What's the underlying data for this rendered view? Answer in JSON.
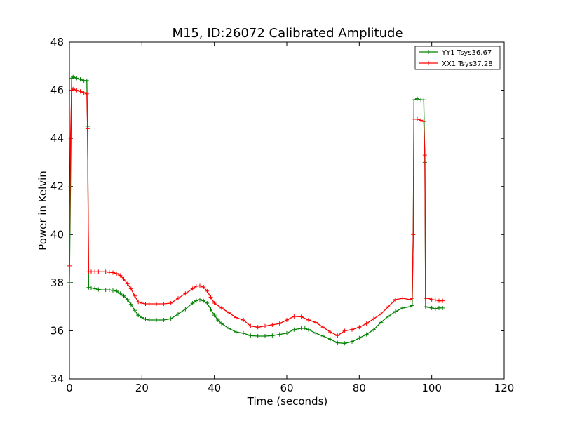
{
  "chart_data": {
    "type": "line",
    "title": "M15, ID:26072 Calibrated Amplitude",
    "xlabel": "Time (seconds)",
    "ylabel": "Power in Kelvin",
    "xlim": [
      0,
      120
    ],
    "ylim": [
      34,
      48
    ],
    "xticks": [
      0,
      20,
      40,
      60,
      80,
      100,
      120
    ],
    "yticks": [
      34,
      36,
      38,
      40,
      42,
      44,
      46,
      48
    ],
    "grid": false,
    "legend_position": "top-right",
    "marker": "+",
    "series": [
      {
        "name": "YY1 Tsys36.67",
        "color": "#008000",
        "points": [
          [
            0,
            38.0
          ],
          [
            0.3,
            42.0
          ],
          [
            0.6,
            46.5
          ],
          [
            1,
            46.55
          ],
          [
            2,
            46.5
          ],
          [
            3,
            46.45
          ],
          [
            4,
            46.4
          ],
          [
            4.8,
            46.4
          ],
          [
            5.0,
            44.5
          ],
          [
            5.3,
            37.8
          ],
          [
            6,
            37.78
          ],
          [
            7,
            37.75
          ],
          [
            8,
            37.72
          ],
          [
            9,
            37.7
          ],
          [
            10,
            37.7
          ],
          [
            11,
            37.7
          ],
          [
            12,
            37.68
          ],
          [
            13,
            37.65
          ],
          [
            14,
            37.55
          ],
          [
            15,
            37.45
          ],
          [
            16,
            37.3
          ],
          [
            17,
            37.1
          ],
          [
            18,
            36.85
          ],
          [
            19,
            36.65
          ],
          [
            20,
            36.55
          ],
          [
            21,
            36.48
          ],
          [
            22,
            36.45
          ],
          [
            24,
            36.45
          ],
          [
            26,
            36.45
          ],
          [
            28,
            36.5
          ],
          [
            30,
            36.7
          ],
          [
            32,
            36.9
          ],
          [
            34,
            37.15
          ],
          [
            35,
            37.25
          ],
          [
            36,
            37.3
          ],
          [
            37,
            37.25
          ],
          [
            38,
            37.15
          ],
          [
            39,
            36.9
          ],
          [
            40,
            36.65
          ],
          [
            41,
            36.45
          ],
          [
            42,
            36.3
          ],
          [
            44,
            36.1
          ],
          [
            46,
            35.95
          ],
          [
            48,
            35.9
          ],
          [
            50,
            35.8
          ],
          [
            52,
            35.78
          ],
          [
            54,
            35.78
          ],
          [
            56,
            35.8
          ],
          [
            58,
            35.85
          ],
          [
            60,
            35.9
          ],
          [
            62,
            36.05
          ],
          [
            64,
            36.1
          ],
          [
            65,
            36.1
          ],
          [
            66,
            36.05
          ],
          [
            68,
            35.9
          ],
          [
            70,
            35.78
          ],
          [
            72,
            35.65
          ],
          [
            74,
            35.5
          ],
          [
            76,
            35.48
          ],
          [
            78,
            35.55
          ],
          [
            80,
            35.7
          ],
          [
            82,
            35.85
          ],
          [
            84,
            36.05
          ],
          [
            86,
            36.35
          ],
          [
            88,
            36.6
          ],
          [
            90,
            36.8
          ],
          [
            92,
            36.95
          ],
          [
            94,
            37.0
          ],
          [
            94.6,
            37.05
          ],
          [
            94.9,
            40.0
          ],
          [
            95.1,
            45.6
          ],
          [
            96,
            45.65
          ],
          [
            97,
            45.6
          ],
          [
            97.8,
            45.6
          ],
          [
            98.1,
            43.0
          ],
          [
            98.3,
            37.0
          ],
          [
            99,
            36.98
          ],
          [
            100,
            36.95
          ],
          [
            101,
            36.92
          ],
          [
            102,
            36.95
          ],
          [
            103,
            36.95
          ]
        ]
      },
      {
        "name": "XX1 Tsys37.28",
        "color": "#ff0000",
        "points": [
          [
            0,
            38.7
          ],
          [
            0.3,
            44.0
          ],
          [
            0.6,
            46.0
          ],
          [
            1,
            46.05
          ],
          [
            2,
            46.0
          ],
          [
            3,
            45.95
          ],
          [
            4,
            45.9
          ],
          [
            4.8,
            45.85
          ],
          [
            5.0,
            44.4
          ],
          [
            5.3,
            38.45
          ],
          [
            6,
            38.45
          ],
          [
            7,
            38.45
          ],
          [
            8,
            38.45
          ],
          [
            9,
            38.45
          ],
          [
            10,
            38.45
          ],
          [
            11,
            38.43
          ],
          [
            12,
            38.42
          ],
          [
            13,
            38.38
          ],
          [
            14,
            38.3
          ],
          [
            15,
            38.15
          ],
          [
            16,
            37.95
          ],
          [
            17,
            37.75
          ],
          [
            18,
            37.45
          ],
          [
            19,
            37.2
          ],
          [
            20,
            37.15
          ],
          [
            21,
            37.12
          ],
          [
            22,
            37.12
          ],
          [
            24,
            37.12
          ],
          [
            26,
            37.12
          ],
          [
            28,
            37.15
          ],
          [
            30,
            37.35
          ],
          [
            32,
            37.55
          ],
          [
            34,
            37.75
          ],
          [
            35,
            37.85
          ],
          [
            36,
            37.87
          ],
          [
            37,
            37.82
          ],
          [
            38,
            37.65
          ],
          [
            39,
            37.4
          ],
          [
            40,
            37.15
          ],
          [
            42,
            36.95
          ],
          [
            44,
            36.75
          ],
          [
            46,
            36.55
          ],
          [
            48,
            36.45
          ],
          [
            50,
            36.2
          ],
          [
            52,
            36.15
          ],
          [
            54,
            36.2
          ],
          [
            56,
            36.25
          ],
          [
            58,
            36.3
          ],
          [
            60,
            36.45
          ],
          [
            62,
            36.6
          ],
          [
            64,
            36.58
          ],
          [
            66,
            36.45
          ],
          [
            68,
            36.35
          ],
          [
            70,
            36.15
          ],
          [
            72,
            35.95
          ],
          [
            74,
            35.8
          ],
          [
            76,
            36.0
          ],
          [
            78,
            36.05
          ],
          [
            80,
            36.15
          ],
          [
            82,
            36.3
          ],
          [
            84,
            36.5
          ],
          [
            86,
            36.7
          ],
          [
            88,
            37.0
          ],
          [
            90,
            37.3
          ],
          [
            92,
            37.35
          ],
          [
            94,
            37.3
          ],
          [
            94.6,
            37.35
          ],
          [
            94.9,
            40.0
          ],
          [
            95.1,
            44.8
          ],
          [
            96,
            44.8
          ],
          [
            97,
            44.75
          ],
          [
            97.8,
            44.7
          ],
          [
            98.1,
            43.3
          ],
          [
            98.3,
            37.35
          ],
          [
            99,
            37.35
          ],
          [
            100,
            37.3
          ],
          [
            101,
            37.28
          ],
          [
            102,
            37.25
          ],
          [
            103,
            37.25
          ]
        ]
      }
    ]
  }
}
